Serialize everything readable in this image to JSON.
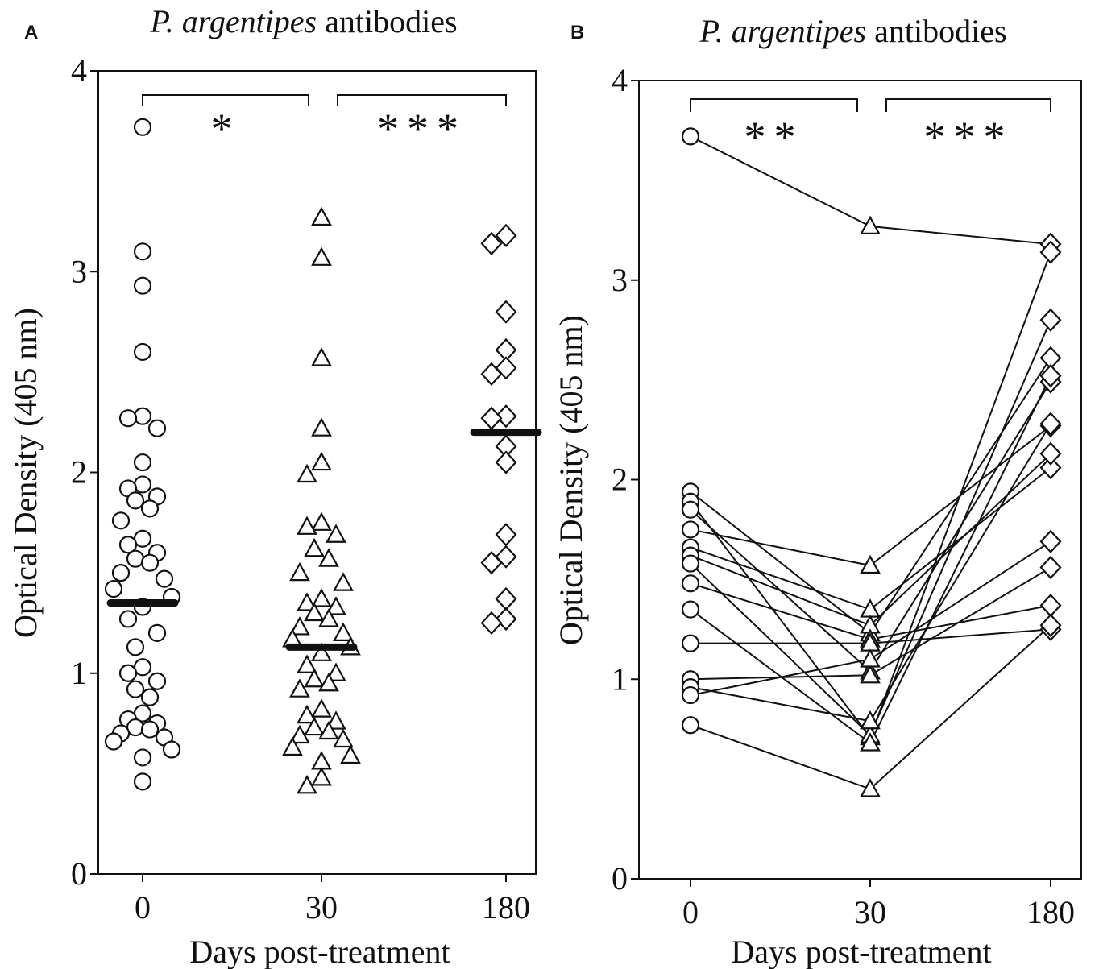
{
  "figure": {
    "colors": {
      "ink": "#111111",
      "marker_fill": "#ffffff",
      "median_bar": "#111111"
    }
  },
  "chart_data": [
    {
      "panel": "A",
      "type": "scatter",
      "title_italic": "P. argentipes",
      "title_rest": " antibodies",
      "xlabel": "Days post-treatment",
      "ylabel": "Optical Density (405 nm)",
      "ylim": [
        0,
        4
      ],
      "yticks": [
        "0",
        "1",
        "2",
        "3",
        "4"
      ],
      "categories": [
        "0",
        "30",
        "180"
      ],
      "grid": false,
      "legend": "none",
      "series": [
        {
          "category": "0",
          "marker": "circle",
          "values": [
            3.72,
            3.1,
            2.93,
            2.6,
            2.28,
            2.27,
            2.22,
            2.05,
            1.94,
            1.92,
            1.88,
            1.86,
            1.82,
            1.76,
            1.67,
            1.64,
            1.6,
            1.57,
            1.55,
            1.5,
            1.47,
            1.42,
            1.38,
            1.33,
            1.27,
            1.2,
            1.13,
            1.03,
            1.0,
            0.96,
            0.92,
            0.88,
            0.8,
            0.77,
            0.75,
            0.73,
            0.72,
            0.7,
            0.68,
            0.66,
            0.62,
            0.58,
            0.46
          ],
          "median": 1.35
        },
        {
          "category": "30",
          "marker": "triangle",
          "values": [
            3.27,
            3.07,
            2.57,
            2.22,
            2.05,
            1.99,
            1.75,
            1.73,
            1.69,
            1.62,
            1.57,
            1.5,
            1.45,
            1.37,
            1.35,
            1.33,
            1.3,
            1.27,
            1.23,
            1.2,
            1.17,
            1.13,
            1.1,
            1.04,
            1.0,
            0.97,
            0.95,
            0.92,
            0.82,
            0.79,
            0.76,
            0.73,
            0.71,
            0.69,
            0.67,
            0.63,
            0.59,
            0.56,
            0.48,
            0.44
          ],
          "median": 1.13
        },
        {
          "category": "180",
          "marker": "diamond",
          "values": [
            3.18,
            3.14,
            2.8,
            2.61,
            2.52,
            2.49,
            2.28,
            2.27,
            2.13,
            2.05,
            1.69,
            1.58,
            1.55,
            1.37,
            1.27,
            1.25
          ],
          "median": 2.2
        }
      ],
      "significance": [
        {
          "from": "0",
          "to": "30",
          "label": "*"
        },
        {
          "from": "30",
          "to": "180",
          "label": "***"
        }
      ]
    },
    {
      "panel": "B",
      "type": "line",
      "title_italic": "P. argentipes",
      "title_rest": " antibodies",
      "xlabel": "Days post-treatment",
      "ylabel": "Optical Density (405 nm)",
      "ylim": [
        0,
        4
      ],
      "yticks": [
        "0",
        "1",
        "2",
        "3",
        "4"
      ],
      "categories": [
        "0",
        "30",
        "180"
      ],
      "markers": [
        "circle",
        "triangle",
        "diamond"
      ],
      "grid": false,
      "legend": "none",
      "series": [
        {
          "values": [
            3.72,
            3.27,
            3.18
          ]
        },
        {
          "values": [
            1.94,
            1.23,
            2.61
          ]
        },
        {
          "values": [
            1.89,
            0.71,
            3.14
          ]
        },
        {
          "values": [
            1.85,
            1.04,
            2.49
          ]
        },
        {
          "values": [
            1.75,
            1.57,
            2.27
          ]
        },
        {
          "values": [
            1.66,
            1.35,
            2.06
          ]
        },
        {
          "values": [
            1.62,
            1.27,
            2.13
          ]
        },
        {
          "values": [
            1.58,
            0.72,
            2.8
          ]
        },
        {
          "values": [
            1.48,
            1.2,
            1.37
          ]
        },
        {
          "values": [
            1.35,
            0.68,
            2.52
          ]
        },
        {
          "values": [
            1.18,
            1.18,
            1.25
          ]
        },
        {
          "values": [
            1.0,
            1.02,
            1.56
          ]
        },
        {
          "values": [
            0.96,
            0.79,
            2.28
          ]
        },
        {
          "values": [
            0.92,
            1.1,
            1.69
          ]
        },
        {
          "values": [
            0.77,
            0.45,
            1.27
          ]
        }
      ],
      "significance": [
        {
          "from": "0",
          "to": "30",
          "label": "**"
        },
        {
          "from": "30",
          "to": "180",
          "label": "***"
        }
      ]
    }
  ]
}
